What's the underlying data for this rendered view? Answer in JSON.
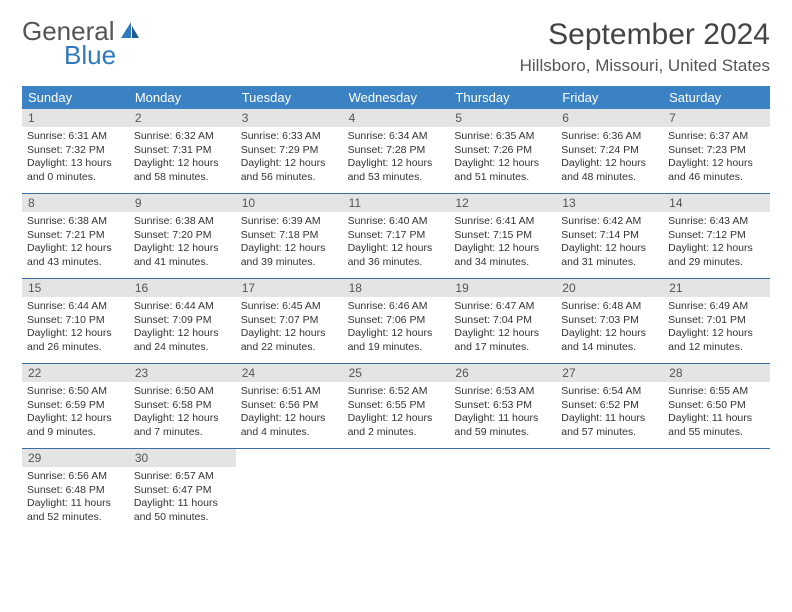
{
  "brand": {
    "part1": "General",
    "part2": "Blue"
  },
  "title": "September 2024",
  "location": "Hillsboro, Missouri, United States",
  "colors": {
    "header_bg": "#3b82c4",
    "header_text": "#ffffff",
    "daynum_bg": "#e4e4e4",
    "week_border": "#3b6fa0",
    "body_text": "#333333",
    "logo_grey": "#555555",
    "logo_blue": "#2f7abf"
  },
  "day_names": [
    "Sunday",
    "Monday",
    "Tuesday",
    "Wednesday",
    "Thursday",
    "Friday",
    "Saturday"
  ],
  "days": [
    {
      "n": "1",
      "sr": "6:31 AM",
      "ss": "7:32 PM",
      "dl": "13 hours and 0 minutes."
    },
    {
      "n": "2",
      "sr": "6:32 AM",
      "ss": "7:31 PM",
      "dl": "12 hours and 58 minutes."
    },
    {
      "n": "3",
      "sr": "6:33 AM",
      "ss": "7:29 PM",
      "dl": "12 hours and 56 minutes."
    },
    {
      "n": "4",
      "sr": "6:34 AM",
      "ss": "7:28 PM",
      "dl": "12 hours and 53 minutes."
    },
    {
      "n": "5",
      "sr": "6:35 AM",
      "ss": "7:26 PM",
      "dl": "12 hours and 51 minutes."
    },
    {
      "n": "6",
      "sr": "6:36 AM",
      "ss": "7:24 PM",
      "dl": "12 hours and 48 minutes."
    },
    {
      "n": "7",
      "sr": "6:37 AM",
      "ss": "7:23 PM",
      "dl": "12 hours and 46 minutes."
    },
    {
      "n": "8",
      "sr": "6:38 AM",
      "ss": "7:21 PM",
      "dl": "12 hours and 43 minutes."
    },
    {
      "n": "9",
      "sr": "6:38 AM",
      "ss": "7:20 PM",
      "dl": "12 hours and 41 minutes."
    },
    {
      "n": "10",
      "sr": "6:39 AM",
      "ss": "7:18 PM",
      "dl": "12 hours and 39 minutes."
    },
    {
      "n": "11",
      "sr": "6:40 AM",
      "ss": "7:17 PM",
      "dl": "12 hours and 36 minutes."
    },
    {
      "n": "12",
      "sr": "6:41 AM",
      "ss": "7:15 PM",
      "dl": "12 hours and 34 minutes."
    },
    {
      "n": "13",
      "sr": "6:42 AM",
      "ss": "7:14 PM",
      "dl": "12 hours and 31 minutes."
    },
    {
      "n": "14",
      "sr": "6:43 AM",
      "ss": "7:12 PM",
      "dl": "12 hours and 29 minutes."
    },
    {
      "n": "15",
      "sr": "6:44 AM",
      "ss": "7:10 PM",
      "dl": "12 hours and 26 minutes."
    },
    {
      "n": "16",
      "sr": "6:44 AM",
      "ss": "7:09 PM",
      "dl": "12 hours and 24 minutes."
    },
    {
      "n": "17",
      "sr": "6:45 AM",
      "ss": "7:07 PM",
      "dl": "12 hours and 22 minutes."
    },
    {
      "n": "18",
      "sr": "6:46 AM",
      "ss": "7:06 PM",
      "dl": "12 hours and 19 minutes."
    },
    {
      "n": "19",
      "sr": "6:47 AM",
      "ss": "7:04 PM",
      "dl": "12 hours and 17 minutes."
    },
    {
      "n": "20",
      "sr": "6:48 AM",
      "ss": "7:03 PM",
      "dl": "12 hours and 14 minutes."
    },
    {
      "n": "21",
      "sr": "6:49 AM",
      "ss": "7:01 PM",
      "dl": "12 hours and 12 minutes."
    },
    {
      "n": "22",
      "sr": "6:50 AM",
      "ss": "6:59 PM",
      "dl": "12 hours and 9 minutes."
    },
    {
      "n": "23",
      "sr": "6:50 AM",
      "ss": "6:58 PM",
      "dl": "12 hours and 7 minutes."
    },
    {
      "n": "24",
      "sr": "6:51 AM",
      "ss": "6:56 PM",
      "dl": "12 hours and 4 minutes."
    },
    {
      "n": "25",
      "sr": "6:52 AM",
      "ss": "6:55 PM",
      "dl": "12 hours and 2 minutes."
    },
    {
      "n": "26",
      "sr": "6:53 AM",
      "ss": "6:53 PM",
      "dl": "11 hours and 59 minutes."
    },
    {
      "n": "27",
      "sr": "6:54 AM",
      "ss": "6:52 PM",
      "dl": "11 hours and 57 minutes."
    },
    {
      "n": "28",
      "sr": "6:55 AM",
      "ss": "6:50 PM",
      "dl": "11 hours and 55 minutes."
    },
    {
      "n": "29",
      "sr": "6:56 AM",
      "ss": "6:48 PM",
      "dl": "11 hours and 52 minutes."
    },
    {
      "n": "30",
      "sr": "6:57 AM",
      "ss": "6:47 PM",
      "dl": "11 hours and 50 minutes."
    }
  ],
  "labels": {
    "sunrise": "Sunrise:",
    "sunset": "Sunset:",
    "daylight": "Daylight:"
  },
  "layout": {
    "start_weekday": 0,
    "total_cells": 35
  }
}
